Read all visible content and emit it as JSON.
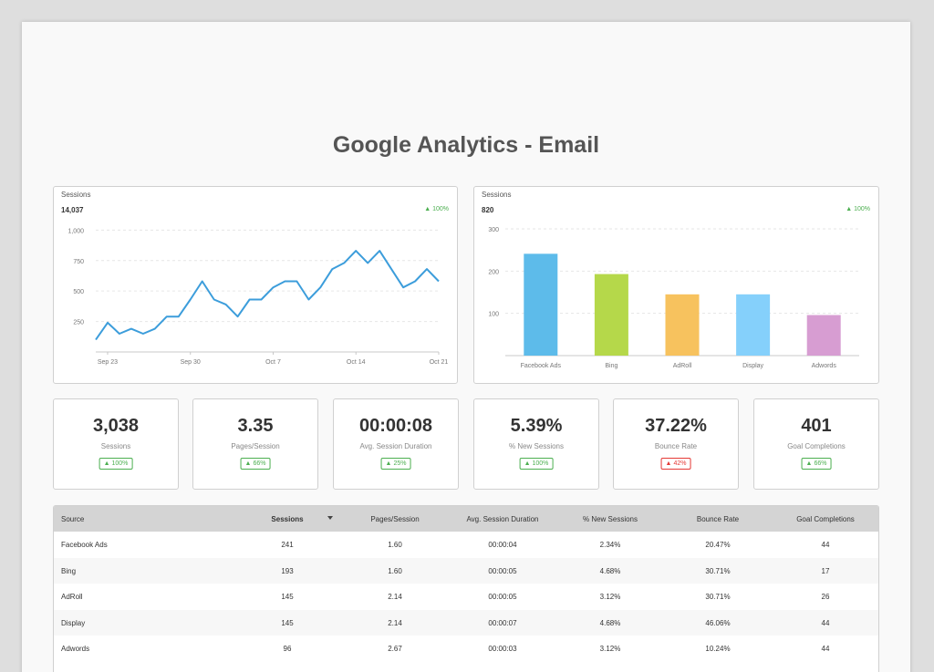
{
  "title": "Google Analytics - Email",
  "colors": {
    "line": "#3c9ddb",
    "up": "#4caf50",
    "down": "#e53935"
  },
  "line_card": {
    "title": "Sessions",
    "total": "14,037",
    "change": "100%"
  },
  "bar_card": {
    "title": "Sessions",
    "total": "820",
    "change": "100%"
  },
  "chart_data": [
    {
      "type": "line",
      "ylim": [
        0,
        1100
      ],
      "y_ticks": [
        "1,000",
        "750",
        "500",
        "250"
      ],
      "y_tick_values": [
        1000,
        750,
        500,
        250
      ],
      "x_tick_labels": [
        "Sep 23",
        "Sep 30",
        "Oct 7",
        "Oct 14",
        "Oct 21"
      ],
      "x_tick_index": [
        1,
        8,
        15,
        22,
        29
      ],
      "grid": true,
      "series": [
        {
          "values": [
            100,
            240,
            150,
            190,
            150,
            190,
            290,
            290,
            430,
            580,
            430,
            390,
            290,
            430,
            430,
            530,
            580,
            580,
            430,
            530,
            680,
            730,
            830,
            730,
            830,
            680,
            530,
            580,
            680,
            580
          ]
        }
      ]
    },
    {
      "type": "bar",
      "ylim": [
        0,
        300
      ],
      "y_ticks": [
        "300",
        "200",
        "100"
      ],
      "y_tick_values": [
        300,
        200,
        100
      ],
      "grid": true,
      "categories": [
        "Facebook Ads",
        "Bing",
        "AdRoll",
        "Display",
        "Adwords"
      ],
      "values": [
        241,
        193,
        145,
        145,
        96
      ],
      "bar_colors": [
        "#5dbbea",
        "#b5d84a",
        "#f7c25e",
        "#85d0fb",
        "#d79dd2"
      ]
    }
  ],
  "kpis": [
    {
      "value": "3,038",
      "label": "Sessions",
      "change": "100%",
      "dir": "up"
    },
    {
      "value": "3.35",
      "label": "Pages/Session",
      "change": "66%",
      "dir": "up"
    },
    {
      "value": "00:00:08",
      "label": "Avg. Session Duration",
      "change": "25%",
      "dir": "up"
    },
    {
      "value": "5.39%",
      "label": "% New Sessions",
      "change": "100%",
      "dir": "up"
    },
    {
      "value": "37.22%",
      "label": "Bounce Rate",
      "change": "42%",
      "dir": "down"
    },
    {
      "value": "401",
      "label": "Goal Completions",
      "change": "66%",
      "dir": "up"
    }
  ],
  "table": {
    "headers": [
      "Source",
      "Sessions",
      "Pages/Session",
      "Avg. Session Duration",
      "% New Sessions",
      "Bounce Rate",
      "Goal Completions"
    ],
    "rows": [
      [
        "Facebook Ads",
        "241",
        "1.60",
        "00:00:04",
        "2.34%",
        "20.47%",
        "44"
      ],
      [
        "Bing",
        "193",
        "1.60",
        "00:00:05",
        "4.68%",
        "30.71%",
        "17"
      ],
      [
        "AdRoll",
        "145",
        "2.14",
        "00:00:05",
        "3.12%",
        "30.71%",
        "26"
      ],
      [
        "Display",
        "145",
        "2.14",
        "00:00:07",
        "4.68%",
        "46.06%",
        "44"
      ],
      [
        "Adwords",
        "96",
        "2.67",
        "00:00:03",
        "3.12%",
        "10.24%",
        "44"
      ]
    ]
  }
}
